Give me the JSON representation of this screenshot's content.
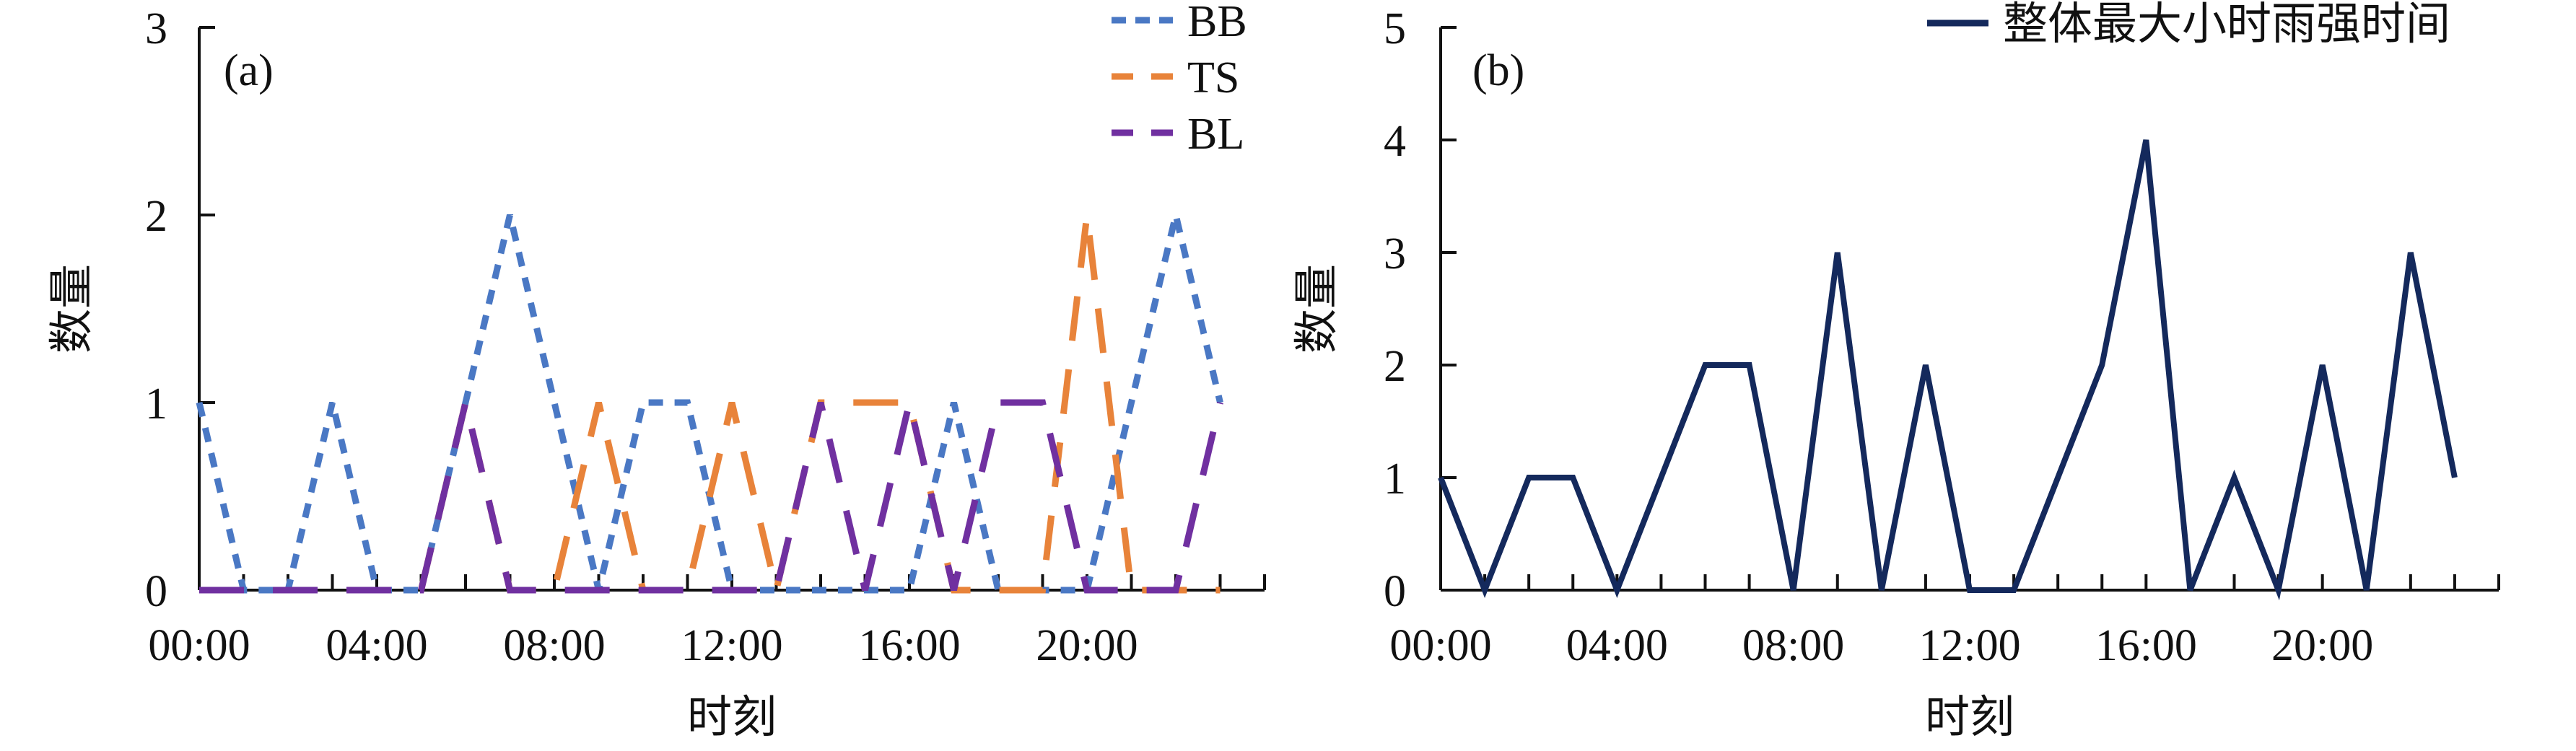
{
  "chart_data": [
    {
      "type": "line",
      "panel_label": "(a)",
      "xlabel": "时刻",
      "ylabel": "数量",
      "x": [
        "00:00",
        "01:00",
        "02:00",
        "03:00",
        "04:00",
        "05:00",
        "06:00",
        "07:00",
        "08:00",
        "09:00",
        "10:00",
        "11:00",
        "12:00",
        "13:00",
        "14:00",
        "15:00",
        "16:00",
        "17:00",
        "18:00",
        "19:00",
        "20:00",
        "21:00",
        "22:00",
        "23:00"
      ],
      "xticks": [
        "00:00",
        "04:00",
        "08:00",
        "12:00",
        "16:00",
        "20:00"
      ],
      "ylim": [
        0,
        3
      ],
      "yticks": [
        0,
        1,
        2,
        3
      ],
      "legend_position": "top-right",
      "series": [
        {
          "name": "BB",
          "color": "#4a78c4",
          "dash": "short-dash",
          "values": [
            1,
            0,
            0,
            1,
            0,
            0,
            1,
            2,
            1,
            0,
            1,
            1,
            0,
            0,
            0,
            0,
            0,
            1,
            0,
            0,
            0,
            1,
            2,
            1
          ]
        },
        {
          "name": "TS",
          "color": "#e8833a",
          "dash": "long-dash",
          "values": [
            0,
            0,
            0,
            0,
            0,
            0,
            1,
            0,
            0,
            1,
            0,
            0,
            1,
            0,
            1,
            1,
            1,
            0,
            0,
            0,
            2,
            0,
            0,
            0
          ]
        },
        {
          "name": "BL",
          "color": "#7030a0",
          "dash": "long-dash",
          "values": [
            0,
            0,
            0,
            0,
            0,
            0,
            1,
            0,
            0,
            0,
            0,
            0,
            0,
            0,
            1,
            0,
            1,
            0,
            1,
            1,
            0,
            0,
            0,
            1
          ]
        }
      ]
    },
    {
      "type": "line",
      "panel_label": "(b)",
      "xlabel": "时刻",
      "ylabel": "数量",
      "x": [
        "00:00",
        "01:00",
        "02:00",
        "03:00",
        "04:00",
        "05:00",
        "06:00",
        "07:00",
        "08:00",
        "09:00",
        "10:00",
        "11:00",
        "12:00",
        "13:00",
        "14:00",
        "15:00",
        "16:00",
        "17:00",
        "18:00",
        "19:00",
        "20:00",
        "21:00",
        "22:00",
        "23:00"
      ],
      "xticks": [
        "00:00",
        "04:00",
        "08:00",
        "12:00",
        "16:00",
        "20:00"
      ],
      "ylim": [
        0,
        5
      ],
      "yticks": [
        0,
        1,
        2,
        3,
        4,
        5
      ],
      "legend_position": "top-right",
      "series": [
        {
          "name": "整体最大小时雨强时间",
          "color": "#14295c",
          "dash": "solid",
          "values": [
            1,
            0,
            1,
            1,
            0,
            1,
            2,
            2,
            0,
            3,
            0,
            2,
            0,
            0,
            1,
            2,
            4,
            0,
            1,
            0,
            2,
            0,
            3,
            1
          ]
        }
      ]
    }
  ]
}
